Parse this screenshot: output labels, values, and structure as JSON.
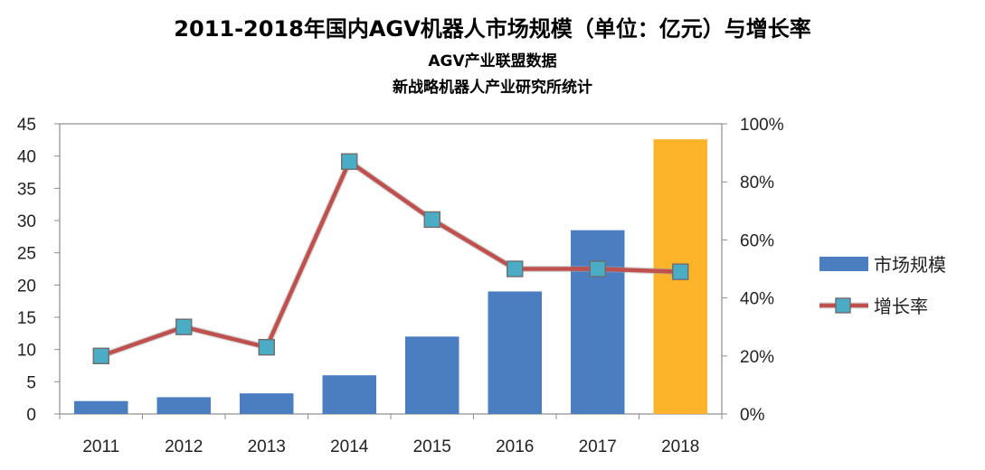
{
  "chart_data": {
    "type": "bar",
    "title": "2011-2018年国内AGV机器人市场规模（单位：亿元）与增长率",
    "subtitle_lines": [
      "AGV产业联盟数据",
      "新战略机器人产业研究所统计"
    ],
    "categories": [
      "2011",
      "2012",
      "2013",
      "2014",
      "2015",
      "2016",
      "2017",
      "2018"
    ],
    "series": [
      {
        "name": "市场规模",
        "type": "bar",
        "axis": "left",
        "color": "#4A7EC1",
        "highlight_color": "#FDB42B",
        "values": [
          2.0,
          2.6,
          3.2,
          6.0,
          12.0,
          19.0,
          28.5,
          42.6
        ]
      },
      {
        "name": "增长率",
        "type": "line",
        "axis": "right",
        "color": "#C0504D",
        "marker_color": "#4BACC6",
        "values": [
          20,
          30,
          23,
          87,
          67,
          50,
          50,
          49
        ]
      }
    ],
    "left_axis": {
      "ylim": [
        0,
        45
      ],
      "ticks": [
        "0",
        "5",
        "10",
        "15",
        "20",
        "25",
        "30",
        "35",
        "40",
        "45"
      ]
    },
    "right_axis": {
      "ylim": [
        0,
        100
      ],
      "ticks": [
        "0%",
        "20%",
        "40%",
        "60%",
        "80%",
        "100%"
      ]
    },
    "legend_position": "right",
    "grid": false
  }
}
